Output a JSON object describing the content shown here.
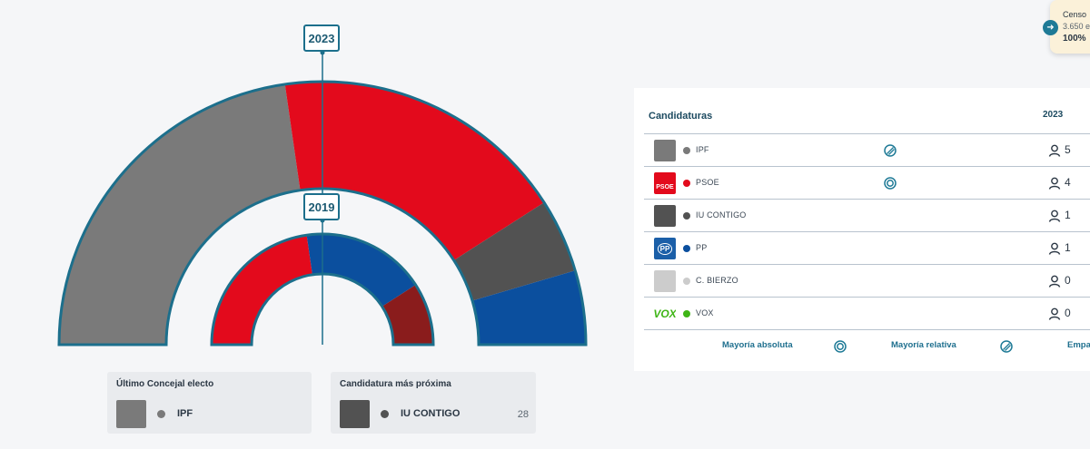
{
  "hemicycle": {
    "years": {
      "current": "2023",
      "previous": "2019"
    },
    "outer_ring": [
      {
        "party": "IPF",
        "seats": 5,
        "color": "#7a7a7a"
      },
      {
        "party": "PSOE",
        "seats": 4,
        "color": "#e30a1c"
      },
      {
        "party": "IU CONTIGO",
        "seats": 1,
        "color": "#525252"
      },
      {
        "party": "PP",
        "seats": 1,
        "color": "#0b4f9e"
      }
    ],
    "inner_ring": [
      {
        "party": "PSOE",
        "seats": 5,
        "color": "#e30a1c"
      },
      {
        "party": "PP",
        "seats": 4,
        "color": "#0b4f9e"
      },
      {
        "party": "C. BIERZO",
        "seats": 2,
        "color": "#8a1c1c"
      }
    ],
    "stroke_color": "#1c6f8c"
  },
  "last_elected": {
    "title": "Último Concejal electo",
    "party": "IPF",
    "color": "#7a7a7a"
  },
  "next_candidate": {
    "title": "Candidatura más próxima",
    "party": "IU CONTIGO",
    "color": "#525252",
    "votes": "28"
  },
  "census": {
    "label": "Censo",
    "count": "3.650 e",
    "percent": "100%"
  },
  "results": {
    "column_title": "Candidaturas",
    "column_year": "2023",
    "rows": [
      {
        "name": "IPF",
        "color": "#7a7a7a",
        "logo": "ipf-logo",
        "seats": "5",
        "mark": "relative-majority-icon"
      },
      {
        "name": "PSOE",
        "color": "#e30a1c",
        "logo": "psoe-logo",
        "logo_text": "PSOE",
        "seats": "4",
        "mark": "absolute-majority-icon"
      },
      {
        "name": "IU CONTIGO",
        "color": "#525252",
        "logo": "iu-contigo-logo",
        "seats": "1",
        "mark": ""
      },
      {
        "name": "PP",
        "color": "#0b4f9e",
        "logo": "pp-logo",
        "logo_text": "PP",
        "seats": "1",
        "mark": ""
      },
      {
        "name": "C. BIERZO",
        "color": "#cccccc",
        "logo": "c-bierzo-logo",
        "seats": "0",
        "mark": ""
      },
      {
        "name": "VOX",
        "color": "#3fb516",
        "logo": "vox-logo",
        "logo_text": "VOX",
        "seats": "0",
        "mark": ""
      }
    ],
    "legend": {
      "absolute": "Mayoría absoluta",
      "relative": "Mayoría relativa",
      "tie": "Empa"
    }
  }
}
